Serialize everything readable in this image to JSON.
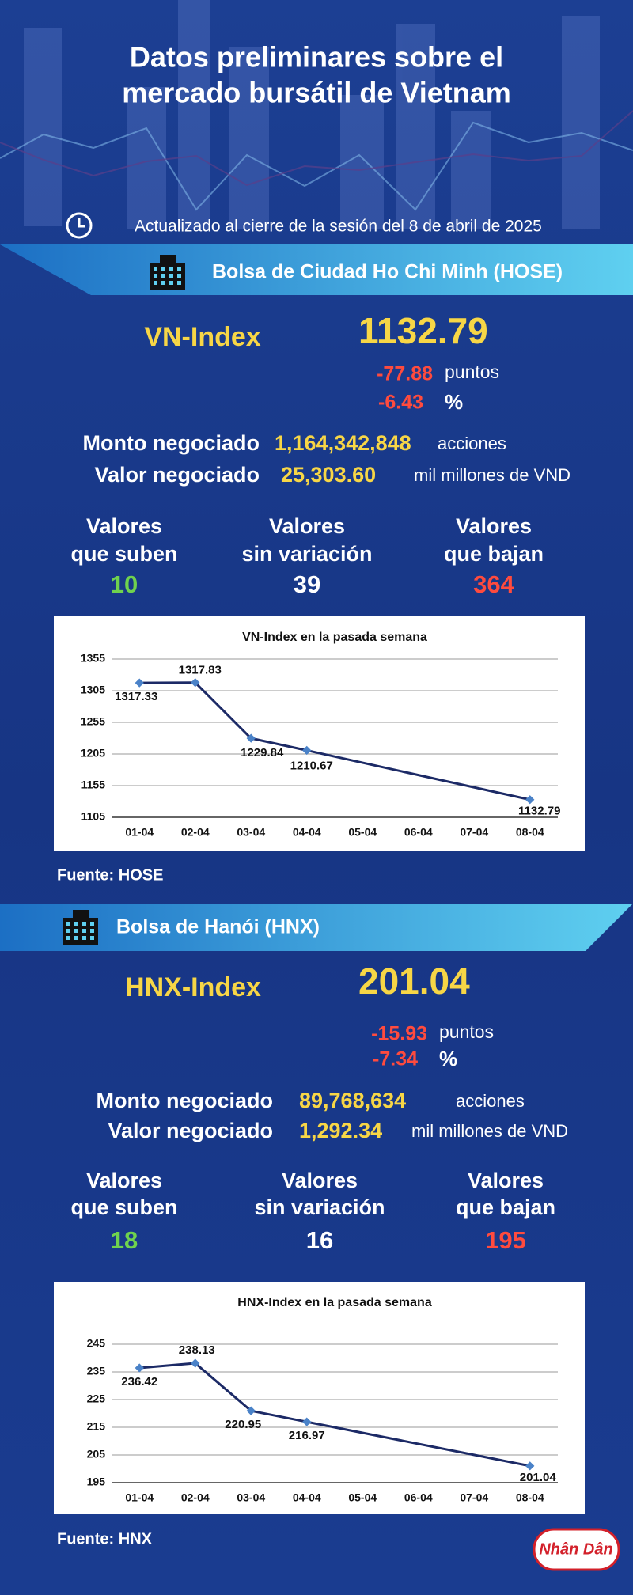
{
  "header": {
    "title": [
      "Datos preliminares sobre el",
      "mercado bursátil de Vietnam"
    ],
    "updated": "Actualizado al cierre de la sesión del 8 de abril de 2025"
  },
  "sections": [
    {
      "exchange": "Bolsa de Ciudad Ho Chi Minh (HOSE)",
      "index_name": "VN-Index",
      "index_value": 1132.79,
      "change_points": -77.88,
      "points_unit": "puntos",
      "change_pct": -6.43,
      "pct_unit": "%",
      "volume_label": "Monto negociado",
      "volume": "1,164,342,848",
      "volume_unit": "acciones",
      "value_label": "Valor negociado",
      "traded_value": "25,303.60",
      "value_unit": "mil millones de VND",
      "breadth": [
        {
          "label": [
            "Valores",
            "que suben"
          ],
          "count": 10
        },
        {
          "label": [
            "Valores",
            "sin variación"
          ],
          "count": 39
        },
        {
          "label": [
            "Valores",
            "que bajan"
          ],
          "count": 364
        }
      ],
      "source": "Fuente: HOSE"
    },
    {
      "exchange": "Bolsa de Hanói (HNX)",
      "index_name": "HNX-Index",
      "index_value": 201.04,
      "change_points": -15.93,
      "points_unit": "puntos",
      "change_pct": -7.34,
      "pct_unit": "%",
      "volume_label": "Monto negociado",
      "volume": "89,768,634",
      "volume_unit": "acciones",
      "value_label": "Valor negociado",
      "traded_value": "1,292.34",
      "value_unit": "mil millones de VND",
      "breadth": [
        {
          "label": [
            "Valores",
            "que suben"
          ],
          "count": 18
        },
        {
          "label": [
            "Valores",
            "sin variación"
          ],
          "count": 16
        },
        {
          "label": [
            "Valores",
            "que bajan"
          ],
          "count": 195
        }
      ],
      "source": "Fuente:  HNX"
    }
  ],
  "chart_data": [
    {
      "type": "line",
      "title": "VN-Index en la pasada semana",
      "categories": [
        "01-04",
        "02-04",
        "03-04",
        "04-04",
        "05-04",
        "06-04",
        "07-04",
        "08-04"
      ],
      "values": [
        1317.33,
        1317.83,
        1229.84,
        1210.67,
        null,
        null,
        null,
        1132.79
      ],
      "color": "#1c2a66",
      "marker_color": "#4a82c8",
      "ylim": [
        1105,
        1355
      ],
      "yticks": [
        1105,
        1155,
        1205,
        1255,
        1305,
        1355
      ],
      "grid": true
    },
    {
      "type": "line",
      "title": "HNX-Index en la pasada semana",
      "categories": [
        "01-04",
        "02-04",
        "03-04",
        "04-04",
        "05-04",
        "06-04",
        "07-04",
        "08-04"
      ],
      "values": [
        236.42,
        238.13,
        220.95,
        216.97,
        null,
        null,
        null,
        201.04
      ],
      "color": "#1c2a66",
      "marker_color": "#4a82c8",
      "ylim": [
        195,
        245
      ],
      "yticks": [
        195,
        205,
        215,
        225,
        235,
        245
      ],
      "grid": true
    }
  ],
  "logo": "Nhân Dân"
}
